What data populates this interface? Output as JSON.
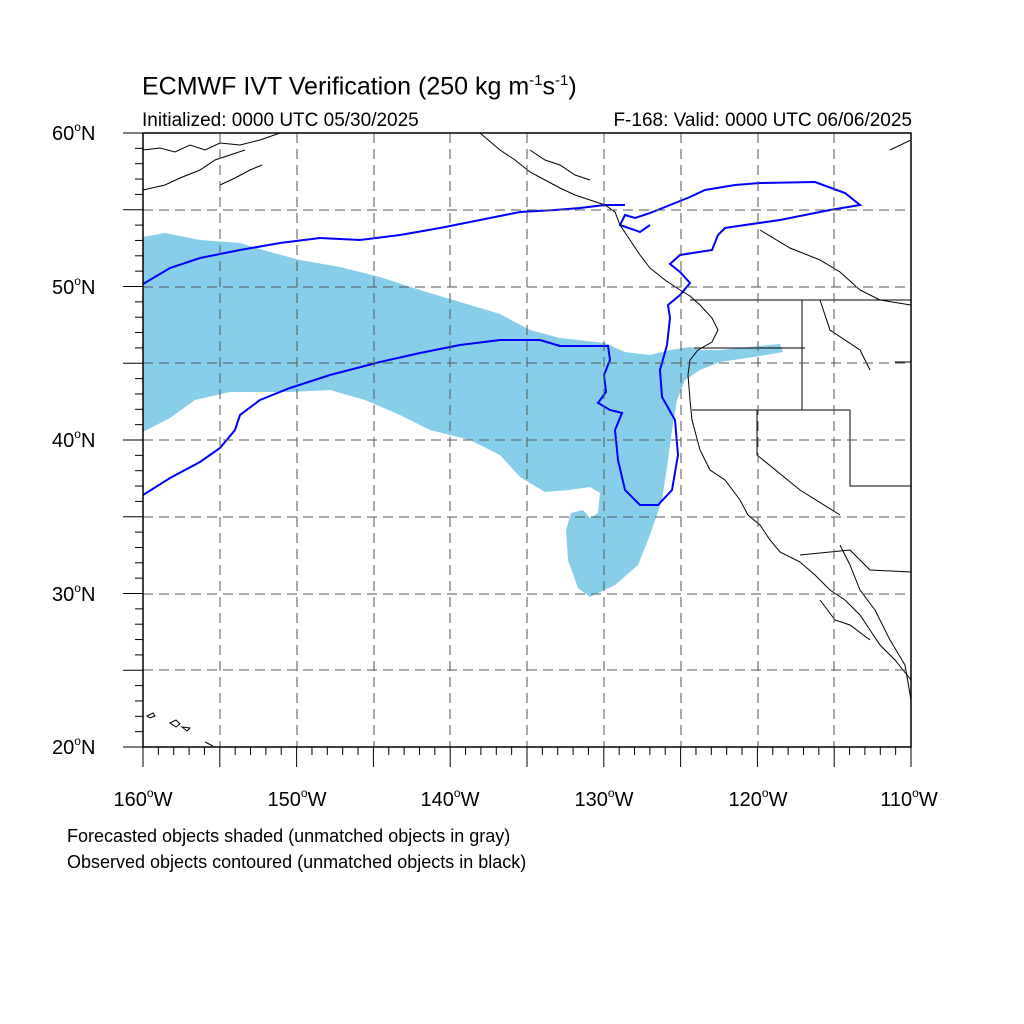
{
  "title": {
    "main": "ECMWF IVT Verification (250 kg m",
    "sup1": "-1",
    "mid": "s",
    "sup2": "-1",
    "end": ")"
  },
  "subtitle_left": "Initialized: 0000 UTC 05/30/2025",
  "subtitle_right": "F-168: Valid: 0000 UTC 06/06/2025",
  "footnote_1": "Forecasted objects shaded (unmatched objects in gray)",
  "footnote_2": "Observed objects contoured (unmatched objects in black)",
  "map": {
    "lon_range": [
      -160,
      -110
    ],
    "lat_range": [
      20,
      60
    ],
    "lat_labels": [
      {
        "num": "60",
        "hem": "N"
      },
      {
        "num": "50",
        "hem": "N"
      },
      {
        "num": "40",
        "hem": "N"
      },
      {
        "num": "30",
        "hem": "N"
      },
      {
        "num": "20",
        "hem": "N"
      }
    ],
    "lon_labels": [
      {
        "num": "160",
        "hem": "W"
      },
      {
        "num": "150",
        "hem": "W"
      },
      {
        "num": "140",
        "hem": "W"
      },
      {
        "num": "130",
        "hem": "W"
      },
      {
        "num": "120",
        "hem": "W"
      },
      {
        "num": "110",
        "hem": "W"
      }
    ],
    "gridline_interval_deg": 5,
    "gridlines": "dashed",
    "colors": {
      "forecast_fill": "#87ceeb",
      "observed_contour": "#0000ff",
      "coastline": "#000000"
    }
  }
}
